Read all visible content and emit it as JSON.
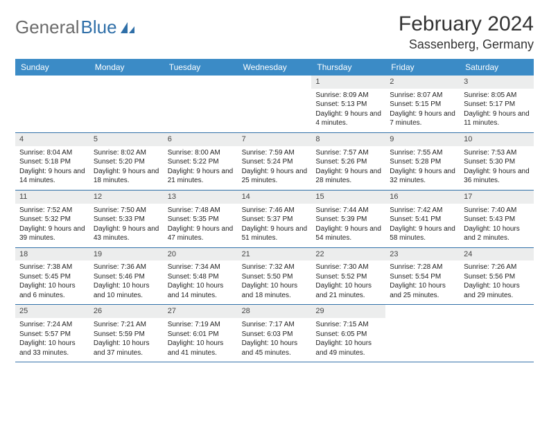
{
  "logo": {
    "text_gray": "General",
    "text_blue": "Blue"
  },
  "header": {
    "month_title": "February 2024",
    "location": "Sassenberg, Germany"
  },
  "colors": {
    "header_bg": "#3b8bc6",
    "header_text": "#ffffff",
    "daynum_bg": "#eceded",
    "border": "#2f6fa8",
    "logo_gray": "#6b6b6b",
    "logo_blue": "#2f6fa8"
  },
  "day_names": [
    "Sunday",
    "Monday",
    "Tuesday",
    "Wednesday",
    "Thursday",
    "Friday",
    "Saturday"
  ],
  "weeks": [
    [
      {
        "empty": true
      },
      {
        "empty": true
      },
      {
        "empty": true
      },
      {
        "empty": true
      },
      {
        "day": "1",
        "sunrise": "Sunrise: 8:09 AM",
        "sunset": "Sunset: 5:13 PM",
        "daylight": "Daylight: 9 hours and 4 minutes."
      },
      {
        "day": "2",
        "sunrise": "Sunrise: 8:07 AM",
        "sunset": "Sunset: 5:15 PM",
        "daylight": "Daylight: 9 hours and 7 minutes."
      },
      {
        "day": "3",
        "sunrise": "Sunrise: 8:05 AM",
        "sunset": "Sunset: 5:17 PM",
        "daylight": "Daylight: 9 hours and 11 minutes."
      }
    ],
    [
      {
        "day": "4",
        "sunrise": "Sunrise: 8:04 AM",
        "sunset": "Sunset: 5:18 PM",
        "daylight": "Daylight: 9 hours and 14 minutes."
      },
      {
        "day": "5",
        "sunrise": "Sunrise: 8:02 AM",
        "sunset": "Sunset: 5:20 PM",
        "daylight": "Daylight: 9 hours and 18 minutes."
      },
      {
        "day": "6",
        "sunrise": "Sunrise: 8:00 AM",
        "sunset": "Sunset: 5:22 PM",
        "daylight": "Daylight: 9 hours and 21 minutes."
      },
      {
        "day": "7",
        "sunrise": "Sunrise: 7:59 AM",
        "sunset": "Sunset: 5:24 PM",
        "daylight": "Daylight: 9 hours and 25 minutes."
      },
      {
        "day": "8",
        "sunrise": "Sunrise: 7:57 AM",
        "sunset": "Sunset: 5:26 PM",
        "daylight": "Daylight: 9 hours and 28 minutes."
      },
      {
        "day": "9",
        "sunrise": "Sunrise: 7:55 AM",
        "sunset": "Sunset: 5:28 PM",
        "daylight": "Daylight: 9 hours and 32 minutes."
      },
      {
        "day": "10",
        "sunrise": "Sunrise: 7:53 AM",
        "sunset": "Sunset: 5:30 PM",
        "daylight": "Daylight: 9 hours and 36 minutes."
      }
    ],
    [
      {
        "day": "11",
        "sunrise": "Sunrise: 7:52 AM",
        "sunset": "Sunset: 5:32 PM",
        "daylight": "Daylight: 9 hours and 39 minutes."
      },
      {
        "day": "12",
        "sunrise": "Sunrise: 7:50 AM",
        "sunset": "Sunset: 5:33 PM",
        "daylight": "Daylight: 9 hours and 43 minutes."
      },
      {
        "day": "13",
        "sunrise": "Sunrise: 7:48 AM",
        "sunset": "Sunset: 5:35 PM",
        "daylight": "Daylight: 9 hours and 47 minutes."
      },
      {
        "day": "14",
        "sunrise": "Sunrise: 7:46 AM",
        "sunset": "Sunset: 5:37 PM",
        "daylight": "Daylight: 9 hours and 51 minutes."
      },
      {
        "day": "15",
        "sunrise": "Sunrise: 7:44 AM",
        "sunset": "Sunset: 5:39 PM",
        "daylight": "Daylight: 9 hours and 54 minutes."
      },
      {
        "day": "16",
        "sunrise": "Sunrise: 7:42 AM",
        "sunset": "Sunset: 5:41 PM",
        "daylight": "Daylight: 9 hours and 58 minutes."
      },
      {
        "day": "17",
        "sunrise": "Sunrise: 7:40 AM",
        "sunset": "Sunset: 5:43 PM",
        "daylight": "Daylight: 10 hours and 2 minutes."
      }
    ],
    [
      {
        "day": "18",
        "sunrise": "Sunrise: 7:38 AM",
        "sunset": "Sunset: 5:45 PM",
        "daylight": "Daylight: 10 hours and 6 minutes."
      },
      {
        "day": "19",
        "sunrise": "Sunrise: 7:36 AM",
        "sunset": "Sunset: 5:46 PM",
        "daylight": "Daylight: 10 hours and 10 minutes."
      },
      {
        "day": "20",
        "sunrise": "Sunrise: 7:34 AM",
        "sunset": "Sunset: 5:48 PM",
        "daylight": "Daylight: 10 hours and 14 minutes."
      },
      {
        "day": "21",
        "sunrise": "Sunrise: 7:32 AM",
        "sunset": "Sunset: 5:50 PM",
        "daylight": "Daylight: 10 hours and 18 minutes."
      },
      {
        "day": "22",
        "sunrise": "Sunrise: 7:30 AM",
        "sunset": "Sunset: 5:52 PM",
        "daylight": "Daylight: 10 hours and 21 minutes."
      },
      {
        "day": "23",
        "sunrise": "Sunrise: 7:28 AM",
        "sunset": "Sunset: 5:54 PM",
        "daylight": "Daylight: 10 hours and 25 minutes."
      },
      {
        "day": "24",
        "sunrise": "Sunrise: 7:26 AM",
        "sunset": "Sunset: 5:56 PM",
        "daylight": "Daylight: 10 hours and 29 minutes."
      }
    ],
    [
      {
        "day": "25",
        "sunrise": "Sunrise: 7:24 AM",
        "sunset": "Sunset: 5:57 PM",
        "daylight": "Daylight: 10 hours and 33 minutes."
      },
      {
        "day": "26",
        "sunrise": "Sunrise: 7:21 AM",
        "sunset": "Sunset: 5:59 PM",
        "daylight": "Daylight: 10 hours and 37 minutes."
      },
      {
        "day": "27",
        "sunrise": "Sunrise: 7:19 AM",
        "sunset": "Sunset: 6:01 PM",
        "daylight": "Daylight: 10 hours and 41 minutes."
      },
      {
        "day": "28",
        "sunrise": "Sunrise: 7:17 AM",
        "sunset": "Sunset: 6:03 PM",
        "daylight": "Daylight: 10 hours and 45 minutes."
      },
      {
        "day": "29",
        "sunrise": "Sunrise: 7:15 AM",
        "sunset": "Sunset: 6:05 PM",
        "daylight": "Daylight: 10 hours and 49 minutes."
      },
      {
        "empty": true
      },
      {
        "empty": true
      }
    ]
  ]
}
